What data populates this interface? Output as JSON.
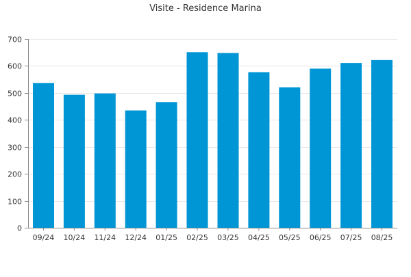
{
  "chart_data": {
    "type": "bar",
    "title": "Visite - Residence Marina",
    "xlabel": "",
    "ylabel": "",
    "categories": [
      "09/24",
      "10/24",
      "11/24",
      "12/24",
      "01/25",
      "02/25",
      "03/25",
      "04/25",
      "05/25",
      "06/25",
      "07/25",
      "08/25"
    ],
    "values": [
      537,
      493,
      498,
      435,
      466,
      651,
      648,
      577,
      521,
      590,
      611,
      622
    ],
    "ylim": [
      0,
      700
    ],
    "yticks": [
      0,
      100,
      200,
      300,
      400,
      500,
      600,
      700
    ],
    "grid": true,
    "legend": "none",
    "colors": {
      "bar": "#0096d6",
      "grid": "#e6e6e6",
      "axis": "#888888"
    }
  }
}
